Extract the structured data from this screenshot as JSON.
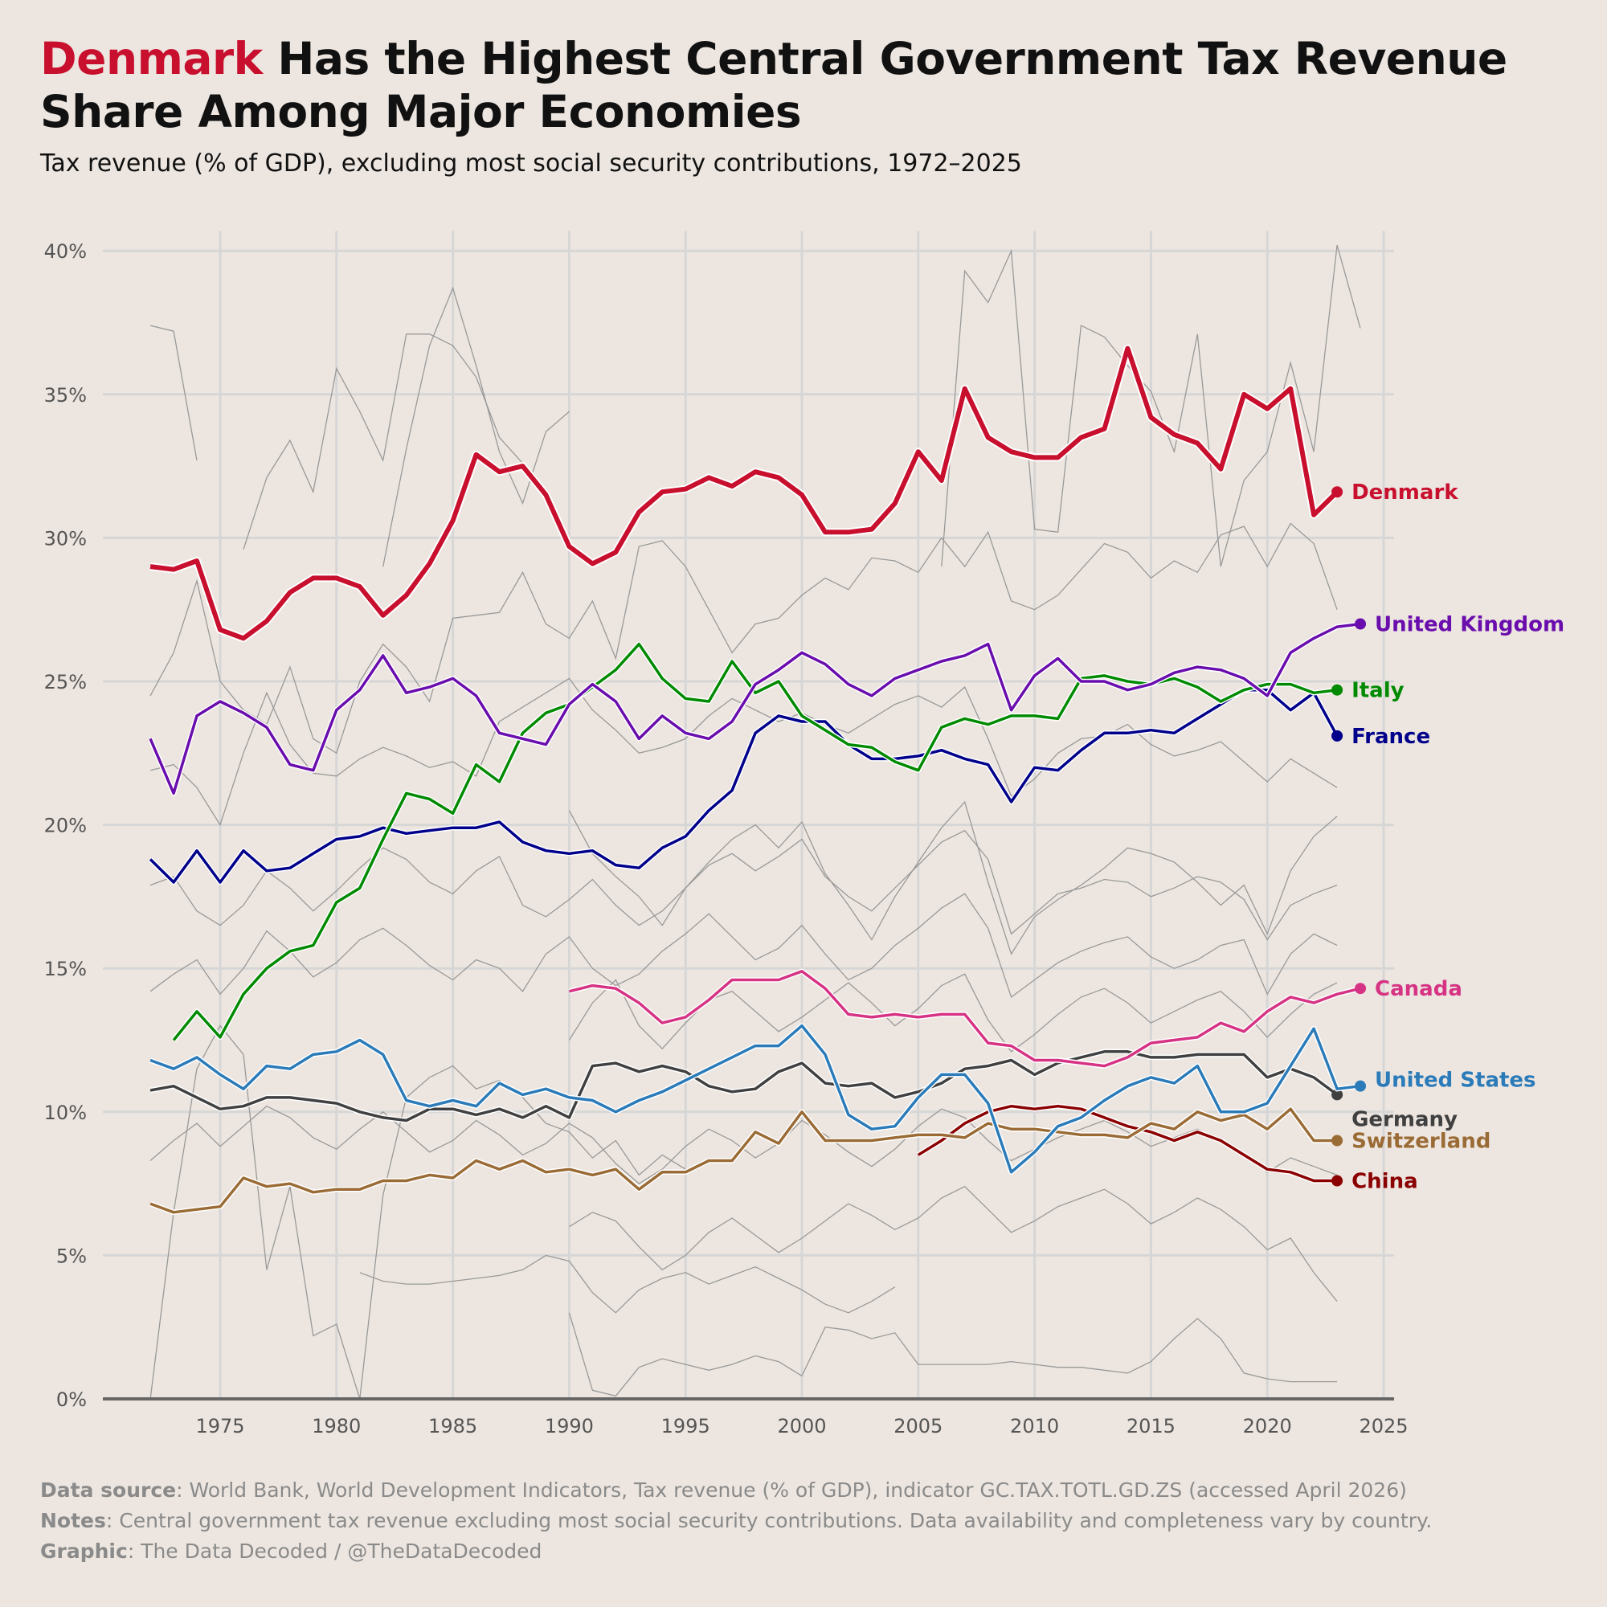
{
  "title": {
    "highlight": "Denmark",
    "rest": " Has the Highest Central Government Tax Revenue Share Among Major Economies"
  },
  "subtitle": "Tax revenue (% of GDP), excluding most social security contributions, 1972–2025",
  "footer": {
    "source_label": "Data source",
    "source_text": ": World Bank, World Development Indicators, Tax revenue (% of GDP), indicator GC.TAX.TOTL.GD.ZS (accessed April 2026)",
    "notes_label": "Notes",
    "notes_text": ": Central government tax revenue excluding most social security contributions. Data availability and completeness vary by country.",
    "graphic_label": "Graphic",
    "graphic_text": ": The Data Decoded / @TheDataDecoded"
  },
  "chart_data": {
    "type": "line",
    "title": "Denmark Has the Highest Central Government Tax Revenue Share Among Major Economies",
    "xlabel": "",
    "ylabel": "",
    "xlim": [
      1970,
      2026
    ],
    "ylim": [
      0,
      40
    ],
    "xticks": [
      1975,
      1980,
      1985,
      1990,
      1995,
      2000,
      2005,
      2010,
      2015,
      2020,
      2025
    ],
    "yticks": [
      0,
      5,
      10,
      15,
      20,
      25,
      30,
      35,
      40
    ],
    "ytick_labels": [
      "0%",
      "5%",
      "10%",
      "15%",
      "20%",
      "25%",
      "30%",
      "35%",
      "40%"
    ],
    "grid": true,
    "legend": "direct labels at line ends (right)",
    "series": [
      {
        "name": "Denmark",
        "color": "#c8102e",
        "start": 1972,
        "values": [
          29.0,
          28.9,
          29.2,
          26.8,
          26.5,
          27.1,
          28.1,
          28.6,
          28.6,
          28.3,
          27.3,
          28.0,
          29.1,
          30.6,
          32.9,
          32.3,
          32.5,
          31.5,
          29.7,
          29.1,
          29.5,
          30.9,
          31.6,
          31.7,
          32.1,
          31.8,
          32.3,
          32.1,
          31.5,
          30.2,
          30.2,
          30.3,
          31.2,
          33.0,
          32.0,
          35.2,
          33.5,
          33.0,
          32.8,
          32.8,
          33.5,
          33.8,
          36.6,
          34.2,
          33.6,
          33.3,
          32.4,
          35.0,
          34.5,
          35.2,
          30.8,
          31.6
        ]
      },
      {
        "name": "United Kingdom",
        "color": "#6a0dad",
        "start": 1972,
        "values": [
          23.0,
          21.1,
          23.8,
          24.3,
          23.9,
          23.4,
          22.1,
          21.9,
          24.0,
          24.7,
          25.9,
          24.6,
          24.8,
          25.1,
          24.5,
          23.2,
          23.0,
          22.8,
          24.2,
          24.9,
          24.3,
          23.0,
          23.8,
          23.2,
          23.0,
          23.6,
          24.9,
          25.4,
          26.0,
          25.6,
          24.9,
          24.5,
          25.1,
          25.4,
          25.7,
          25.9,
          26.3,
          24.0,
          25.2,
          25.8,
          25.0,
          25.0,
          24.7,
          24.9,
          25.3,
          25.5,
          25.4,
          25.1,
          24.5,
          26.0,
          26.5,
          26.9,
          27.0
        ]
      },
      {
        "name": "Italy",
        "color": "#008a00",
        "start": 1973,
        "values": [
          12.5,
          13.5,
          12.6,
          14.1,
          15.0,
          15.6,
          15.8,
          17.3,
          17.8,
          19.5,
          21.1,
          20.9,
          20.4,
          22.1,
          21.5,
          23.2,
          23.9,
          24.2,
          24.8,
          25.4,
          26.3,
          25.1,
          24.4,
          24.3,
          25.7,
          24.6,
          25.0,
          23.8,
          23.3,
          22.8,
          22.7,
          22.2,
          21.9,
          23.4,
          23.7,
          23.5,
          23.8,
          23.8,
          23.7,
          25.1,
          25.2,
          25.0,
          24.9,
          25.1,
          24.8,
          24.3,
          24.7,
          24.9,
          24.9,
          24.6,
          24.7
        ]
      },
      {
        "name": "France",
        "color": "#00008b",
        "start": 1972,
        "values": [
          18.8,
          18.0,
          19.1,
          18.0,
          19.1,
          18.4,
          18.5,
          19.0,
          19.5,
          19.6,
          19.9,
          19.7,
          19.8,
          19.9,
          19.9,
          20.1,
          19.4,
          19.1,
          19.0,
          19.1,
          18.6,
          18.5,
          19.2,
          19.6,
          20.5,
          21.2,
          23.2,
          23.8,
          23.6,
          23.6,
          22.8,
          22.3,
          22.3,
          22.4,
          22.6,
          22.3,
          22.1,
          20.8,
          22.0,
          21.9,
          22.6,
          23.2,
          23.2,
          23.3,
          23.2,
          23.7,
          24.2,
          24.7,
          24.7,
          24.0,
          24.6,
          23.1
        ]
      },
      {
        "name": "Canada",
        "color": "#d63384",
        "start": 1990,
        "values": [
          14.2,
          14.4,
          14.3,
          13.8,
          13.1,
          13.3,
          13.9,
          14.6,
          14.6,
          14.6,
          14.9,
          14.3,
          13.4,
          13.3,
          13.4,
          13.3,
          13.4,
          13.4,
          12.4,
          12.3,
          11.8,
          11.8,
          11.7,
          11.6,
          11.9,
          12.4,
          12.5,
          12.6,
          13.1,
          12.8,
          13.5,
          14.0,
          13.8,
          14.1,
          14.3
        ]
      },
      {
        "name": "United States",
        "color": "#2b7bb9",
        "start": 1972,
        "values": [
          11.8,
          11.5,
          11.9,
          11.3,
          10.8,
          11.6,
          11.5,
          12.0,
          12.1,
          12.5,
          12.0,
          10.4,
          10.2,
          10.4,
          10.2,
          11.0,
          10.6,
          10.8,
          10.5,
          10.4,
          10.0,
          10.4,
          10.7,
          11.1,
          11.5,
          11.9,
          12.3,
          12.3,
          13.0,
          12.0,
          9.9,
          9.4,
          9.5,
          10.5,
          11.3,
          11.3,
          10.3,
          7.9,
          8.6,
          9.5,
          9.8,
          10.4,
          10.9,
          11.2,
          11.0,
          11.6,
          10.0,
          10.0,
          10.3,
          11.6,
          12.9,
          10.8,
          10.9
        ]
      },
      {
        "name": "Germany",
        "color": "#404040",
        "start": 1972,
        "values": [
          10.75,
          10.9,
          10.5,
          10.1,
          10.2,
          10.5,
          10.5,
          10.4,
          10.3,
          10.0,
          9.8,
          9.7,
          10.1,
          10.1,
          9.9,
          10.1,
          9.8,
          10.2,
          9.8,
          11.6,
          11.7,
          11.4,
          11.6,
          11.4,
          10.9,
          10.7,
          10.8,
          11.4,
          11.7,
          11.0,
          10.9,
          11.0,
          10.5,
          10.7,
          11.0,
          11.5,
          11.6,
          11.8,
          11.3,
          11.7,
          11.9,
          12.1,
          12.1,
          11.9,
          11.9,
          12.0,
          12.0,
          12.0,
          11.2,
          11.5,
          11.2,
          10.6
        ]
      },
      {
        "name": "Switzerland",
        "color": "#9a6b35",
        "start": 1972,
        "values": [
          6.8,
          6.5,
          6.6,
          6.7,
          7.7,
          7.4,
          7.5,
          7.2,
          7.3,
          7.3,
          7.6,
          7.6,
          7.8,
          7.7,
          8.3,
          8.0,
          8.3,
          7.9,
          8.0,
          7.8,
          8.0,
          7.3,
          7.9,
          7.9,
          8.3,
          8.3,
          9.3,
          8.9,
          10.0,
          9.0,
          9.0,
          9.0,
          9.1,
          9.2,
          9.2,
          9.1,
          9.6,
          9.4,
          9.4,
          9.3,
          9.2,
          9.2,
          9.1,
          9.6,
          9.4,
          10.0,
          9.7,
          9.9,
          9.4,
          10.1,
          9.0,
          9.0
        ]
      },
      {
        "name": "China",
        "color": "#8b0000",
        "start": 2005,
        "values": [
          8.5,
          9.0,
          9.6,
          10.0,
          10.2,
          10.1,
          10.2,
          10.1,
          9.8,
          9.5,
          9.3,
          9.0,
          9.3,
          9.0,
          8.5,
          8.0,
          7.9,
          7.6,
          7.6
        ]
      }
    ],
    "background_series": [
      {
        "start": 1972,
        "values": [
          37.4,
          37.2,
          32.7
        ]
      },
      {
        "start": 1976,
        "values": [
          29.6,
          32.1,
          33.4,
          31.6,
          35.9,
          34.4,
          32.7,
          37.1,
          37.1,
          36.7,
          35.6,
          33.5,
          32.6
        ]
      },
      {
        "start": 1982,
        "values": [
          29.0,
          33.1,
          36.7,
          38.7,
          36.0,
          33.0,
          31.2,
          33.7,
          34.4
        ]
      },
      {
        "start": 2006,
        "values": [
          29.0,
          39.3,
          38.2,
          40.0,
          30.3,
          30.2,
          37.4,
          37.0,
          36.0,
          35.1,
          33.0,
          37.1,
          29.0,
          32.0,
          33.0,
          36.1,
          33.0,
          40.2,
          37.3
        ]
      },
      {
        "start": 1972,
        "values": [
          24.5,
          26.0,
          28.5,
          25.0,
          24.0,
          23.5,
          25.5,
          23.0,
          22.5,
          25.0,
          26.3,
          25.5,
          24.3,
          27.2,
          27.3,
          27.4,
          28.8,
          27.0,
          26.5,
          27.8,
          25.8,
          29.7,
          29.9,
          29.0,
          27.5,
          26.0,
          27.0,
          27.2,
          28.0,
          28.6,
          28.2,
          29.3,
          29.2,
          28.8,
          30.0,
          29.0,
          30.2,
          27.8,
          27.5,
          28.0,
          28.9,
          29.8,
          29.5,
          28.6,
          29.2,
          28.8,
          30.1,
          30.4,
          29.0,
          30.5,
          29.8,
          27.5
        ]
      },
      {
        "start": 1972,
        "values": [
          21.9,
          22.1,
          21.3,
          20.0,
          22.5,
          24.6,
          22.8,
          21.8,
          21.7,
          22.3,
          22.7,
          22.4,
          22.0,
          22.2,
          21.7,
          23.6,
          24.1,
          24.6,
          25.1,
          24.0,
          23.3,
          22.5,
          22.7,
          23.0,
          23.8,
          24.4,
          24.0,
          23.6,
          23.9,
          23.5,
          23.2,
          23.7,
          24.2,
          24.5,
          24.1,
          24.8,
          23.0,
          21.0,
          21.6,
          22.5,
          23.0,
          23.1,
          23.5,
          22.8,
          22.4,
          22.6,
          22.9,
          22.2,
          21.5,
          22.3,
          21.8,
          21.3
        ]
      },
      {
        "start": 1972,
        "values": [
          17.9,
          18.2,
          17.0,
          16.5,
          17.2,
          18.4,
          17.8,
          17.0,
          17.7,
          18.5,
          19.2,
          18.8,
          18.0,
          17.6,
          18.4,
          18.9,
          17.2,
          16.8,
          17.4,
          18.1,
          17.2,
          16.5,
          17.0,
          17.8,
          18.6,
          19.0,
          18.4,
          18.9,
          19.5,
          18.2,
          17.5,
          17.0,
          17.8,
          18.6,
          19.4,
          19.8,
          18.8,
          16.2,
          16.9,
          17.6,
          17.8,
          18.1,
          18.0,
          17.5,
          17.8,
          18.2,
          18.0,
          17.4,
          16.0,
          17.2,
          17.6,
          17.9
        ]
      },
      {
        "start": 1990,
        "values": [
          20.5,
          19.0,
          18.2,
          17.5,
          16.5,
          17.8,
          18.7,
          19.5,
          20.0,
          19.2,
          20.1,
          18.3,
          17.2,
          16.0,
          17.5,
          18.7,
          19.9,
          20.8,
          18.0,
          15.5,
          16.8,
          17.4,
          17.9,
          18.5,
          19.2,
          19.0,
          18.7,
          18.0,
          17.2,
          17.9,
          16.2,
          18.4,
          19.6,
          20.3
        ]
      },
      {
        "start": 1972,
        "values": [
          14.2,
          14.8,
          15.3,
          14.1,
          15.0,
          16.3,
          15.6,
          14.7,
          15.2,
          16.0,
          16.4,
          15.8,
          15.1,
          14.6,
          15.3,
          15.0,
          14.2,
          15.5,
          16.1,
          15.0,
          14.4,
          14.8,
          15.6,
          16.2,
          16.9,
          16.1,
          15.3,
          15.7,
          16.5,
          15.5,
          14.6,
          15.0,
          15.8,
          16.4,
          17.1,
          17.6,
          16.4,
          14.0,
          14.6,
          15.2,
          15.6,
          15.9,
          16.1,
          15.4,
          15.0,
          15.3,
          15.8,
          16.0,
          14.1,
          15.5,
          16.2,
          15.8
        ]
      },
      {
        "start": 1990,
        "values": [
          12.5,
          13.8,
          14.6,
          13.0,
          12.2,
          13.1,
          13.9,
          14.2,
          13.5,
          12.8,
          13.3,
          13.9,
          14.5,
          13.8,
          13.0,
          13.6,
          14.4,
          14.8,
          13.2,
          12.1,
          12.7,
          13.4,
          14.0,
          14.3,
          13.8,
          13.1,
          13.5,
          13.9,
          14.2,
          13.5,
          12.6,
          13.4,
          14.1,
          14.5
        ]
      },
      {
        "start": 1972,
        "values": [
          8.3,
          9.0,
          9.6,
          8.8,
          9.5,
          10.2,
          9.8,
          9.1,
          8.7,
          9.4,
          10.0,
          9.3,
          8.6,
          9.0,
          9.7,
          9.2,
          8.5,
          8.9,
          9.6,
          9.1,
          8.2,
          7.5,
          8.0,
          8.8,
          9.4,
          9.0,
          8.4,
          8.9,
          9.7,
          9.2,
          8.6,
          8.1,
          8.7,
          9.5,
          10.1,
          9.8,
          9.0,
          8.3,
          8.7,
          9.1,
          9.4,
          9.7,
          9.3,
          8.8,
          9.1,
          9.4,
          9.0,
          8.5,
          7.9,
          8.4,
          8.1,
          7.8
        ]
      },
      {
        "start": 1981,
        "values": [
          4.4,
          4.1,
          4.0,
          4.0,
          4.1,
          4.2,
          4.3,
          4.5,
          5.0,
          4.8,
          3.7,
          3.0,
          3.8,
          4.2,
          4.4,
          4.0,
          4.3,
          4.6,
          4.2,
          3.8,
          3.3,
          3.0,
          3.4,
          3.9
        ]
      },
      {
        "start": 1990,
        "values": [
          6.0,
          6.5,
          6.2,
          5.3,
          4.5,
          5.0,
          5.8,
          6.3,
          5.7,
          5.1,
          5.6,
          6.2,
          6.8,
          6.4,
          5.9,
          6.3,
          7.0,
          7.4,
          6.6,
          5.8,
          6.2,
          6.7,
          7.0,
          7.3,
          6.8,
          6.1,
          6.5,
          7.0,
          6.6,
          6.0,
          5.2,
          5.6,
          4.4,
          3.4
        ]
      },
      {
        "start": 1990,
        "values": [
          3.0,
          0.3,
          0.1,
          1.1,
          1.4,
          1.2,
          1.0,
          1.2,
          1.5,
          1.3,
          0.8,
          2.5,
          2.4,
          2.1,
          2.3,
          1.2,
          1.2,
          1.2,
          1.2,
          1.3,
          1.2,
          1.1,
          1.1,
          1.0,
          0.9,
          1.3,
          2.1,
          2.8,
          2.1,
          0.9,
          0.7,
          0.6,
          0.6,
          0.6
        ]
      },
      {
        "start": 1972,
        "values": [
          0.0,
          6.5,
          11.5,
          13.0,
          12.0,
          4.5,
          7.4,
          2.2,
          2.6,
          0.0,
          7.1,
          10.5,
          11.2,
          11.6,
          10.8,
          11.1,
          10.5,
          9.6,
          9.3,
          8.4,
          9.0,
          7.8,
          8.5,
          8.0
        ]
      }
    ]
  }
}
